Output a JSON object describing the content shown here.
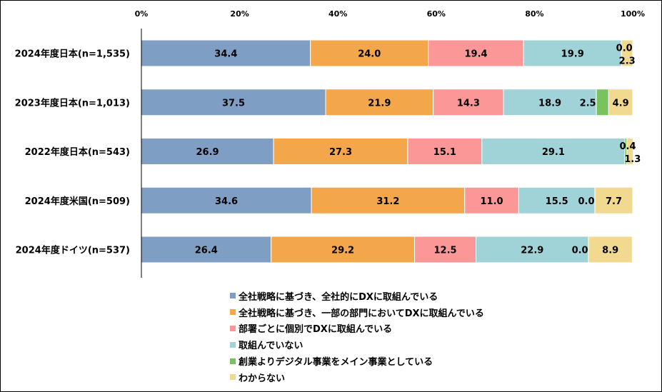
{
  "chart_data": {
    "type": "bar",
    "orientation": "horizontal",
    "stacked": true,
    "categories": [
      "2024年度日本(n=1,535)",
      "2023年度日本(n=1,013)",
      "2022年度日本(n=543)",
      "2024年度米国(n=509)",
      "2024年度ドイツ(n=537)"
    ],
    "series": [
      {
        "name": "全社戦略に基づき、全社的にDXに取組んでいる",
        "color": "#7f9ec4",
        "values": [
          34.4,
          37.5,
          26.9,
          34.6,
          26.4
        ]
      },
      {
        "name": "全社戦略に基づき、一部の部門においてDXに取組んでいる",
        "color": "#f4a64a",
        "values": [
          24.0,
          21.9,
          27.3,
          31.2,
          29.2
        ]
      },
      {
        "name": "部署ごとに個別でDXに取組んでいる",
        "color": "#fb9797",
        "values": [
          19.4,
          14.3,
          15.1,
          11.0,
          12.5
        ]
      },
      {
        "name": "取組んでいない",
        "color": "#9fd3d8",
        "values": [
          19.9,
          18.9,
          29.1,
          15.5,
          22.9
        ]
      },
      {
        "name": "創業よりデジタル事業をメイン事業としている",
        "color": "#78c35e",
        "values": [
          0.0,
          2.5,
          0.4,
          0.0,
          0.0
        ]
      },
      {
        "name": "わからない",
        "color": "#f1d990",
        "values": [
          2.3,
          4.9,
          1.3,
          7.7,
          8.9
        ]
      }
    ],
    "xlim": [
      0,
      100
    ],
    "xticks": [
      "0%",
      "20%",
      "40%",
      "60%",
      "80%",
      "100%"
    ],
    "legend_position": "bottom",
    "grid": false
  }
}
